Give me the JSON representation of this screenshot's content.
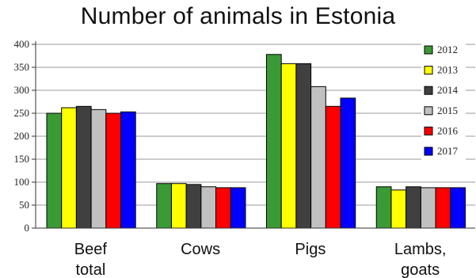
{
  "chart_data": {
    "type": "bar",
    "title": "Number of animals in Estonia",
    "categories": [
      [
        "Beef",
        "total"
      ],
      [
        "Cows"
      ],
      [
        "Pigs"
      ],
      [
        "Lambs,",
        "goats"
      ]
    ],
    "ylim": [
      0,
      400
    ],
    "yticks": [
      0,
      50,
      100,
      150,
      200,
      250,
      300,
      350,
      400
    ],
    "grid": true,
    "legend_position": "right",
    "series": [
      {
        "name": "2012",
        "color": "#3a9a35",
        "values": [
          250,
          97,
          378,
          90
        ]
      },
      {
        "name": "2013",
        "color": "#ffff00",
        "values": [
          262,
          97,
          358,
          83
        ]
      },
      {
        "name": "2014",
        "color": "#404040",
        "values": [
          265,
          95,
          358,
          90
        ]
      },
      {
        "name": "2015",
        "color": "#c0c0c0",
        "values": [
          258,
          90,
          308,
          88
        ]
      },
      {
        "name": "2016",
        "color": "#ff0000",
        "values": [
          250,
          88,
          265,
          88
        ]
      },
      {
        "name": "2017",
        "color": "#0000ff",
        "values": [
          253,
          88,
          283,
          88
        ]
      }
    ]
  }
}
